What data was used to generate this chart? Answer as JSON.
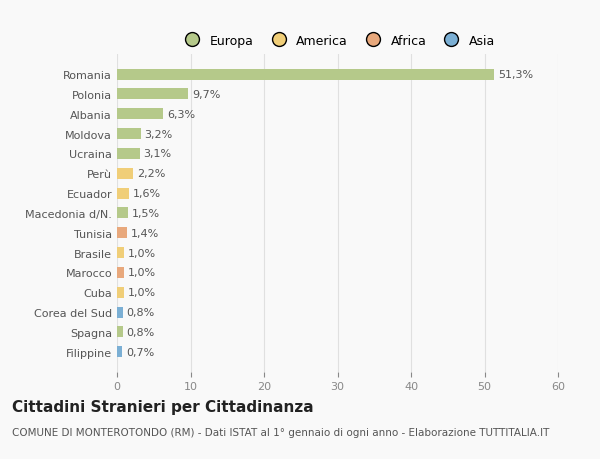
{
  "categories": [
    "Romania",
    "Polonia",
    "Albania",
    "Moldova",
    "Ucraina",
    "Perù",
    "Ecuador",
    "Macedonia d/N.",
    "Tunisia",
    "Brasile",
    "Marocco",
    "Cuba",
    "Corea del Sud",
    "Spagna",
    "Filippine"
  ],
  "values": [
    51.3,
    9.7,
    6.3,
    3.2,
    3.1,
    2.2,
    1.6,
    1.5,
    1.4,
    1.0,
    1.0,
    1.0,
    0.8,
    0.8,
    0.7
  ],
  "labels": [
    "51,3%",
    "9,7%",
    "6,3%",
    "3,2%",
    "3,1%",
    "2,2%",
    "1,6%",
    "1,5%",
    "1,4%",
    "1,0%",
    "1,0%",
    "1,0%",
    "0,8%",
    "0,8%",
    "0,7%"
  ],
  "bar_colors": [
    "#b5c98a",
    "#b5c98a",
    "#b5c98a",
    "#b5c98a",
    "#b5c98a",
    "#f0ce78",
    "#f0ce78",
    "#b5c98a",
    "#e8a87c",
    "#f0ce78",
    "#e8a87c",
    "#f0ce78",
    "#7bafd4",
    "#b5c98a",
    "#7bafd4"
  ],
  "legend_labels": [
    "Europa",
    "America",
    "Africa",
    "Asia"
  ],
  "legend_colors": [
    "#b5c98a",
    "#f0ce78",
    "#e8a87c",
    "#7bafd4"
  ],
  "title": "Cittadini Stranieri per Cittadinanza",
  "subtitle": "COMUNE DI MONTEROTONDO (RM) - Dati ISTAT al 1° gennaio di ogni anno - Elaborazione TUTTITALIA.IT",
  "xlim": [
    0,
    60
  ],
  "xticks": [
    0,
    10,
    20,
    30,
    40,
    50,
    60
  ],
  "background_color": "#f9f9f9",
  "grid_color": "#e0e0e0",
  "bar_height": 0.55,
  "label_fontsize": 8,
  "ytick_fontsize": 8,
  "xtick_fontsize": 8,
  "title_fontsize": 11,
  "subtitle_fontsize": 7.5,
  "legend_fontsize": 9
}
